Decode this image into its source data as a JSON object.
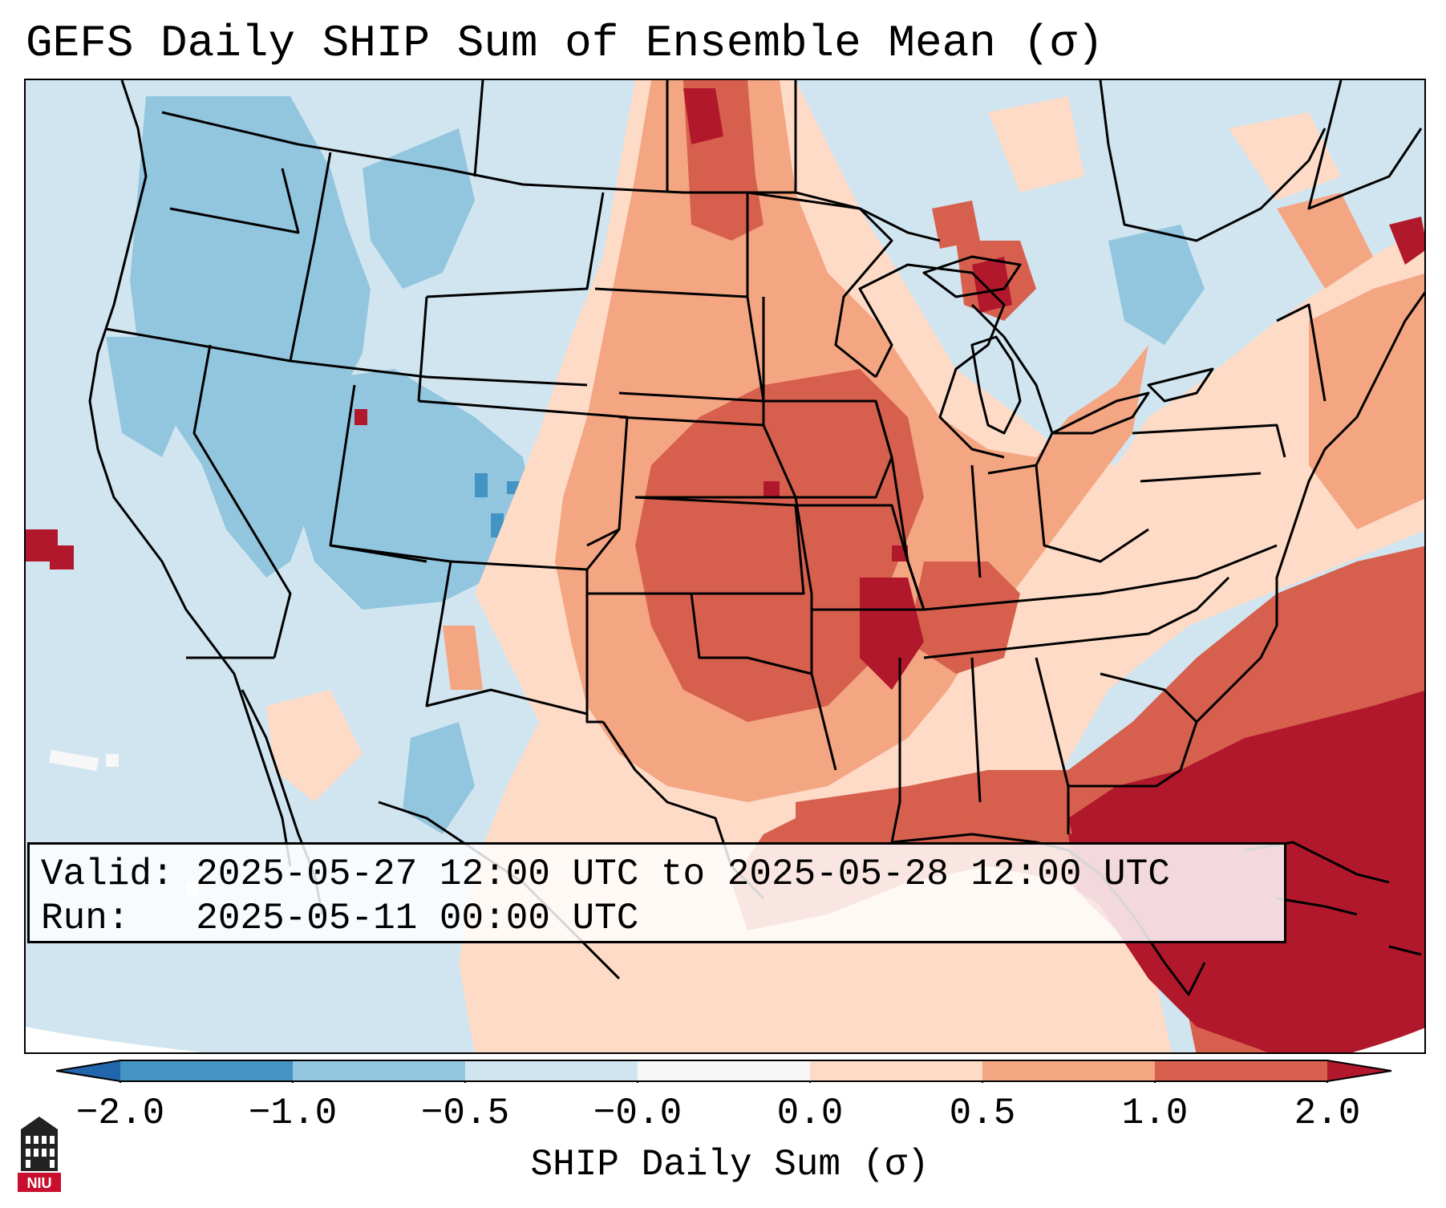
{
  "title": "GEFS Daily SHIP Sum of Ensemble Mean (σ)",
  "info": {
    "valid_label": "Valid:",
    "valid_value": "2025-05-27 12:00 UTC to 2025-05-28 12:00 UTC",
    "run_label": "Run:",
    "run_value": "2025-05-11 00:00 UTC"
  },
  "colorbar": {
    "title": "SHIP Daily Sum (σ)",
    "ticks": [
      "−2.0",
      "−1.0",
      "−0.5",
      "−0.0",
      "0.0",
      "0.5",
      "1.0",
      "2.0"
    ],
    "colors": {
      "below_min": "#2166ac",
      "neg_2_to_1": "#4393c3",
      "neg_1_to_05": "#92c5de",
      "neg_05_to_0": "#d1e5f0",
      "zero": "#f7f7f7",
      "pos_0_to_05": "#fddbc7",
      "pos_05_to_1": "#f4a582",
      "pos_1_to_2": "#d6604d",
      "above_max": "#b2182b"
    }
  },
  "logo": {
    "text": "NIU",
    "icon": "university-tower-icon"
  }
}
